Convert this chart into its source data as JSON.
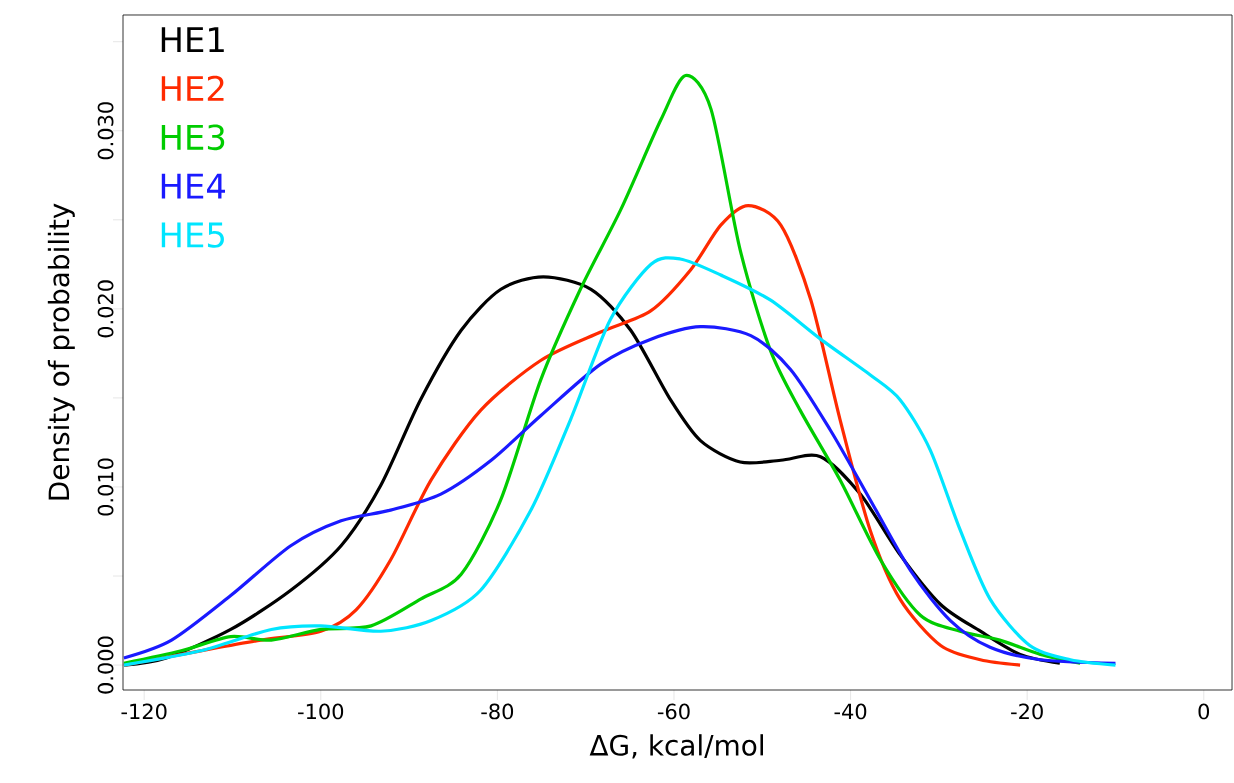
{
  "chart_data": {
    "type": "line",
    "xlabel": "ΔG, kcal/mol",
    "ylabel": "Density of probability",
    "xlim": [
      -122.4,
      3.2
    ],
    "ylim": [
      -0.0014,
      0.0365
    ],
    "xticks": [
      -120,
      -100,
      -80,
      -60,
      -40,
      -20,
      0
    ],
    "yticks": [
      {
        "value": 0,
        "label": "0.000"
      },
      {
        "value": 0.005,
        "label": null
      },
      {
        "value": 0.01,
        "label": "0.010"
      },
      {
        "value": 0.015,
        "label": null
      },
      {
        "value": 0.02,
        "label": "0.020"
      },
      {
        "value": 0.025,
        "label": null
      },
      {
        "value": 0.03,
        "label": "0.030"
      },
      {
        "value": 0.035,
        "label": null
      }
    ],
    "grid": false,
    "legend": "top left",
    "series": [
      {
        "name": "HE1",
        "color": "#000000",
        "x": [
          -122.3,
          -117.5,
          -110.2,
          -103.4,
          -97.7,
          -93.2,
          -88.7,
          -84.1,
          -79.6,
          -74.8,
          -69.4,
          -64.9,
          -60.4,
          -57.0,
          -52.5,
          -47.9,
          -43.4,
          -38.9,
          -34.4,
          -29.8,
          -25.3,
          -20.8,
          -16.3
        ],
        "values": [
          0.0,
          0.0004,
          0.002,
          0.0042,
          0.0067,
          0.0101,
          0.0149,
          0.0188,
          0.0211,
          0.0218,
          0.0211,
          0.0188,
          0.0149,
          0.0126,
          0.0114,
          0.0115,
          0.0117,
          0.0096,
          0.0062,
          0.0034,
          0.0019,
          0.0006,
          0.0001
        ]
      },
      {
        "name": "HE2",
        "color": "#ff2a00",
        "x": [
          -122.3,
          -113.6,
          -106.8,
          -100.0,
          -96.0,
          -92.1,
          -87.5,
          -81.9,
          -75.1,
          -68.3,
          -62.6,
          -58.1,
          -54.7,
          -51.6,
          -47.9,
          -44.5,
          -41.2,
          -37.8,
          -34.4,
          -29.8,
          -25.3,
          -20.8
        ],
        "values": [
          0.0,
          0.0008,
          0.0014,
          0.0019,
          0.0031,
          0.0059,
          0.0104,
          0.0143,
          0.0171,
          0.0187,
          0.0199,
          0.0222,
          0.0247,
          0.0258,
          0.0247,
          0.0205,
          0.0138,
          0.0076,
          0.0037,
          0.0011,
          0.0003,
          0.0
        ]
      },
      {
        "name": "HE3",
        "color": "#00cc00",
        "x": [
          -122.3,
          -115.8,
          -110.2,
          -105.6,
          -100.0,
          -94.3,
          -88.7,
          -84.1,
          -79.6,
          -75.1,
          -70.6,
          -66.0,
          -61.5,
          -58.7,
          -55.8,
          -52.5,
          -49.1,
          -45.7,
          -41.2,
          -36.6,
          -32.1,
          -27.6,
          -23.1,
          -18.5,
          -14.0
        ],
        "values": [
          0.0001,
          0.0008,
          0.0016,
          0.0014,
          0.002,
          0.0022,
          0.0037,
          0.0051,
          0.0093,
          0.016,
          0.0211,
          0.0256,
          0.0306,
          0.0331,
          0.0312,
          0.0233,
          0.0177,
          0.0143,
          0.0104,
          0.0059,
          0.0028,
          0.0019,
          0.0014,
          0.0006,
          0.0001
        ]
      },
      {
        "name": "HE4",
        "color": "#1a1aff",
        "x": [
          -122.3,
          -116.9,
          -110.2,
          -103.4,
          -97.7,
          -92.1,
          -86.4,
          -80.7,
          -75.1,
          -68.3,
          -62.6,
          -57.0,
          -51.3,
          -46.8,
          -42.3,
          -37.8,
          -33.2,
          -28.7,
          -24.2,
          -18.5,
          -10.0
        ],
        "values": [
          0.0004,
          0.0014,
          0.0039,
          0.0067,
          0.0081,
          0.0087,
          0.0096,
          0.0115,
          0.014,
          0.0169,
          0.0183,
          0.019,
          0.0185,
          0.0166,
          0.0132,
          0.0093,
          0.0053,
          0.0025,
          0.001,
          0.0003,
          0.0001
        ]
      },
      {
        "name": "HE5",
        "color": "#00e5ff",
        "x": [
          -122.3,
          -113.6,
          -105.6,
          -100.0,
          -93.2,
          -87.5,
          -81.9,
          -76.2,
          -71.7,
          -67.2,
          -62.6,
          -59.3,
          -54.7,
          -49.1,
          -43.4,
          -37.8,
          -34.4,
          -31.0,
          -27.6,
          -24.2,
          -19.7,
          -15.1,
          -10.0
        ],
        "values": [
          0.0,
          0.0008,
          0.002,
          0.0022,
          0.0019,
          0.0025,
          0.0042,
          0.0087,
          0.0138,
          0.0194,
          0.0225,
          0.0228,
          0.0219,
          0.0205,
          0.0183,
          0.0163,
          0.0149,
          0.0121,
          0.0076,
          0.0037,
          0.0011,
          0.0003,
          0.0
        ]
      }
    ]
  }
}
